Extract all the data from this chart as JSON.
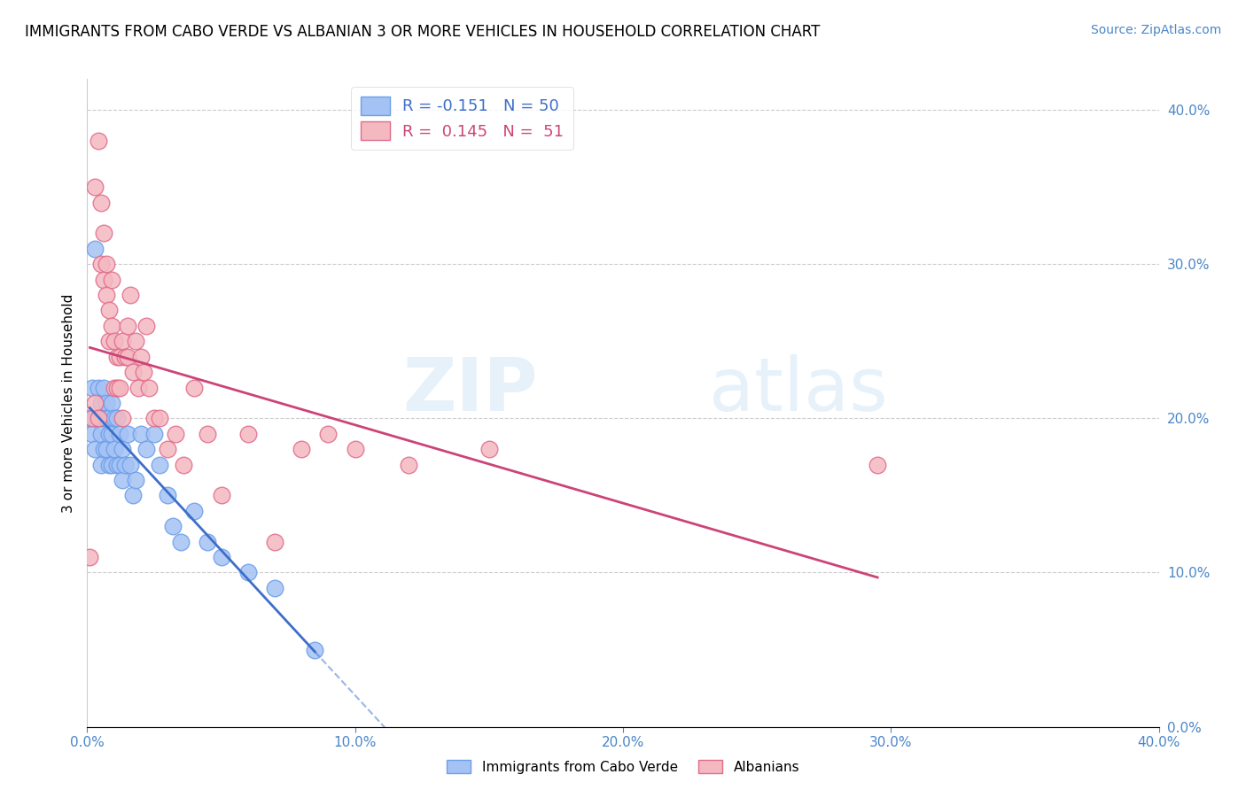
{
  "title": "IMMIGRANTS FROM CABO VERDE VS ALBANIAN 3 OR MORE VEHICLES IN HOUSEHOLD CORRELATION CHART",
  "source": "Source: ZipAtlas.com",
  "ylabel": "3 or more Vehicles in Household",
  "xlim": [
    0.0,
    0.4
  ],
  "ylim": [
    0.0,
    0.42
  ],
  "yticks": [
    0.0,
    0.1,
    0.2,
    0.3,
    0.4
  ],
  "xticks": [
    0.0,
    0.1,
    0.2,
    0.3,
    0.4
  ],
  "blue_R": -0.151,
  "blue_N": 50,
  "pink_R": 0.145,
  "pink_N": 51,
  "blue_color": "#a4c2f4",
  "pink_color": "#f4b8c1",
  "blue_edge_color": "#6d9eeb",
  "pink_edge_color": "#e06c8a",
  "blue_line_color": "#3d6ec9",
  "pink_line_color": "#cc4477",
  "axis_label_color": "#4a86c8",
  "legend_blue_label": "Immigrants from Cabo Verde",
  "legend_pink_label": "Albanians",
  "blue_x": [
    0.001,
    0.002,
    0.002,
    0.003,
    0.003,
    0.003,
    0.004,
    0.004,
    0.005,
    0.005,
    0.005,
    0.005,
    0.006,
    0.006,
    0.006,
    0.007,
    0.007,
    0.007,
    0.008,
    0.008,
    0.008,
    0.009,
    0.009,
    0.009,
    0.01,
    0.01,
    0.011,
    0.011,
    0.012,
    0.012,
    0.013,
    0.013,
    0.014,
    0.015,
    0.016,
    0.017,
    0.018,
    0.02,
    0.022,
    0.025,
    0.027,
    0.03,
    0.032,
    0.035,
    0.04,
    0.045,
    0.05,
    0.06,
    0.07,
    0.085
  ],
  "blue_y": [
    0.2,
    0.22,
    0.19,
    0.31,
    0.2,
    0.18,
    0.22,
    0.2,
    0.21,
    0.2,
    0.19,
    0.17,
    0.22,
    0.2,
    0.18,
    0.21,
    0.2,
    0.18,
    0.2,
    0.19,
    0.17,
    0.21,
    0.19,
    0.17,
    0.2,
    0.18,
    0.2,
    0.17,
    0.19,
    0.17,
    0.18,
    0.16,
    0.17,
    0.19,
    0.17,
    0.15,
    0.16,
    0.19,
    0.18,
    0.19,
    0.17,
    0.15,
    0.13,
    0.12,
    0.14,
    0.12,
    0.11,
    0.1,
    0.09,
    0.05
  ],
  "pink_x": [
    0.001,
    0.002,
    0.003,
    0.003,
    0.004,
    0.004,
    0.005,
    0.005,
    0.006,
    0.006,
    0.007,
    0.007,
    0.008,
    0.008,
    0.009,
    0.009,
    0.01,
    0.01,
    0.011,
    0.011,
    0.012,
    0.012,
    0.013,
    0.013,
    0.014,
    0.015,
    0.015,
    0.016,
    0.017,
    0.018,
    0.019,
    0.02,
    0.021,
    0.022,
    0.023,
    0.025,
    0.027,
    0.03,
    0.033,
    0.036,
    0.04,
    0.045,
    0.05,
    0.06,
    0.07,
    0.08,
    0.09,
    0.1,
    0.12,
    0.15,
    0.295
  ],
  "pink_y": [
    0.11,
    0.2,
    0.35,
    0.21,
    0.38,
    0.2,
    0.34,
    0.3,
    0.32,
    0.29,
    0.3,
    0.28,
    0.27,
    0.25,
    0.29,
    0.26,
    0.22,
    0.25,
    0.24,
    0.22,
    0.24,
    0.22,
    0.25,
    0.2,
    0.24,
    0.26,
    0.24,
    0.28,
    0.23,
    0.25,
    0.22,
    0.24,
    0.23,
    0.26,
    0.22,
    0.2,
    0.2,
    0.18,
    0.19,
    0.17,
    0.22,
    0.19,
    0.15,
    0.19,
    0.12,
    0.18,
    0.19,
    0.18,
    0.17,
    0.18,
    0.17
  ]
}
